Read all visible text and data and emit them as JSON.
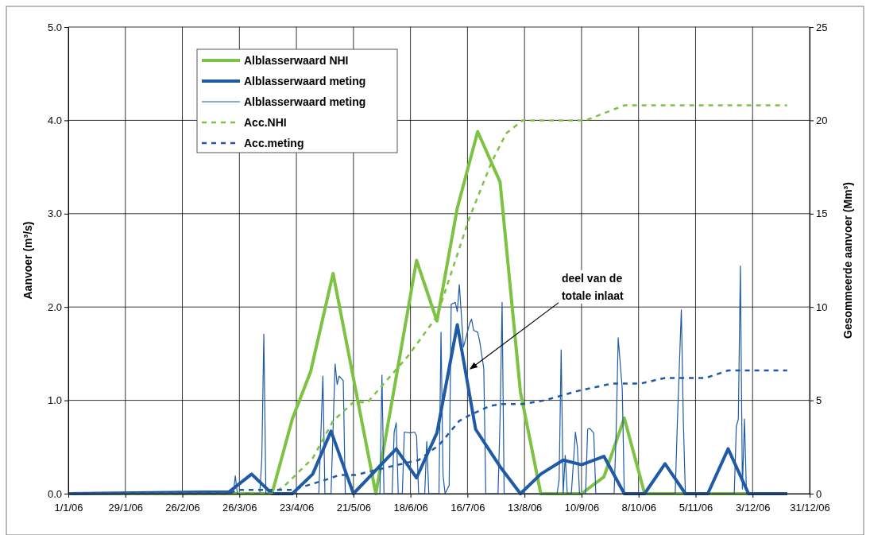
{
  "chart_data": {
    "type": "line",
    "ylabel": "Aanvoer (m³/s)",
    "y2label": "Gesommeerde aanvoer (Mm³)",
    "xlim": [
      "2006-01-01",
      "2006-12-31"
    ],
    "xticks": [
      {
        "value": "2006-01-01",
        "label": "1/1/06"
      },
      {
        "value": "2006-01-29",
        "label": "29/1/06"
      },
      {
        "value": "2006-02-26",
        "label": "26/2/06"
      },
      {
        "value": "2006-03-26",
        "label": "26/3/06"
      },
      {
        "value": "2006-04-23",
        "label": "23/4/06"
      },
      {
        "value": "2006-05-21",
        "label": "21/5/06"
      },
      {
        "value": "2006-06-18",
        "label": "18/6/06"
      },
      {
        "value": "2006-07-16",
        "label": "16/7/06"
      },
      {
        "value": "2006-08-13",
        "label": "13/8/06"
      },
      {
        "value": "2006-09-10",
        "label": "10/9/06"
      },
      {
        "value": "2006-10-08",
        "label": "8/10/06"
      },
      {
        "value": "2006-11-05",
        "label": "5/11/06"
      },
      {
        "value": "2006-12-03",
        "label": "3/12/06"
      },
      {
        "value": "2006-12-31",
        "label": "31/12/06"
      }
    ],
    "ylim": [
      0,
      5
    ],
    "yticks": [
      {
        "value": 0,
        "label": "0.0"
      },
      {
        "value": 1,
        "label": "1.0"
      },
      {
        "value": 2,
        "label": "2.0"
      },
      {
        "value": 3,
        "label": "3.0"
      },
      {
        "value": 4,
        "label": "4.0"
      },
      {
        "value": 5,
        "label": "5.0"
      }
    ],
    "y2lim": [
      0,
      25
    ],
    "y2ticks": [
      0,
      5,
      10,
      15,
      20,
      25
    ],
    "grid": true,
    "legend": "top left",
    "series": [
      {
        "name": "Alblasserwaard NHI",
        "color": "#7dc242",
        "line_style": "solid",
        "x": [
          "2006-01-01",
          "2006-04-11",
          "2006-04-21",
          "2006-04-30",
          "2006-05-11",
          "2006-06-01",
          "2006-06-21",
          "2006-07-01",
          "2006-07-11",
          "2006-07-21",
          "2006-08-01",
          "2006-08-11",
          "2006-08-21",
          "2006-09-10",
          "2006-09-21",
          "2006-10-01",
          "2006-10-11",
          "2006-12-20"
        ],
        "values": [
          0,
          0,
          0.8,
          1.31,
          2.36,
          0,
          2.5,
          1.85,
          3.06,
          3.88,
          3.34,
          1.09,
          0,
          0,
          0.18,
          0.81,
          0,
          0
        ]
      },
      {
        "name": "Alblasserwaard meting",
        "color": "#1f5aa6",
        "line_style": "solid",
        "x": [
          "2006-01-01",
          "2006-03-21",
          "2006-04-01",
          "2006-04-11",
          "2006-04-21",
          "2006-05-01",
          "2006-05-10",
          "2006-05-21",
          "2006-06-11",
          "2006-06-21",
          "2006-07-01",
          "2006-07-11",
          "2006-07-20",
          "2006-08-01",
          "2006-08-11",
          "2006-08-21",
          "2006-09-01",
          "2006-09-10",
          "2006-09-21",
          "2006-10-01",
          "2006-10-11",
          "2006-10-21",
          "2006-10-31",
          "2006-11-11",
          "2006-11-21",
          "2006-12-01",
          "2006-12-20"
        ],
        "values": [
          0,
          0.02,
          0.21,
          0,
          0,
          0.21,
          0.67,
          0,
          0.48,
          0.17,
          0.65,
          1.81,
          0.69,
          0.29,
          0,
          0.21,
          0.36,
          0.31,
          0.4,
          0,
          0,
          0.32,
          0,
          0,
          0.48,
          0,
          0
        ]
      },
      {
        "name": "Alblasserwaard meting",
        "color": "#1f5aa6",
        "line_style": "solid",
        "x": [
          "2006-01-01",
          "2006-03-23",
          "2006-03-24",
          "2006-03-25",
          "2006-04-05",
          "2006-04-06",
          "2006-04-07",
          "2006-04-08",
          "2006-05-04",
          "2006-05-06",
          "2006-05-07",
          "2006-05-10",
          "2006-05-12",
          "2006-05-13",
          "2006-05-14",
          "2006-05-16",
          "2006-05-17",
          "2006-06-03",
          "2006-06-04",
          "2006-06-05",
          "2006-06-09",
          "2006-06-10",
          "2006-06-11",
          "2006-06-12",
          "2006-06-14",
          "2006-06-15",
          "2006-06-18",
          "2006-06-20",
          "2006-06-21",
          "2006-06-22",
          "2006-06-25",
          "2006-06-26",
          "2006-06-27",
          "2006-07-02",
          "2006-07-03",
          "2006-07-04",
          "2006-07-05",
          "2006-07-07",
          "2006-07-08",
          "2006-07-10",
          "2006-07-11",
          "2006-07-12",
          "2006-07-13",
          "2006-07-14",
          "2006-07-15",
          "2006-07-17",
          "2006-07-18",
          "2006-07-19",
          "2006-07-21",
          "2006-07-22",
          "2006-07-24",
          "2006-07-25",
          "2006-07-31",
          "2006-08-01",
          "2006-08-02",
          "2006-08-03",
          "2006-08-29",
          "2006-08-30",
          "2006-08-31",
          "2006-09-01",
          "2006-09-02",
          "2006-09-03",
          "2006-09-05",
          "2006-09-07",
          "2006-09-08",
          "2006-09-09",
          "2006-09-12",
          "2006-09-13",
          "2006-09-14",
          "2006-09-16",
          "2006-09-17",
          "2006-09-26",
          "2006-09-27",
          "2006-09-28",
          "2006-09-30",
          "2006-10-01",
          "2006-10-26",
          "2006-10-27",
          "2006-10-29",
          "2006-10-30",
          "2006-10-31",
          "2006-11-24",
          "2006-11-25",
          "2006-11-26",
          "2006-11-27",
          "2006-11-28",
          "2006-11-29",
          "2006-11-30",
          "2006-12-20"
        ],
        "values": [
          0,
          0,
          0.19,
          0,
          0,
          0.37,
          1.71,
          0,
          0,
          1.26,
          0,
          0,
          1.39,
          1.17,
          1.26,
          1.21,
          0,
          0,
          1.27,
          0,
          0,
          0.66,
          0.76,
          0,
          0,
          0.66,
          0.65,
          0.66,
          0.62,
          0,
          0,
          0.56,
          0,
          0,
          1.73,
          0.2,
          0,
          0.09,
          2.03,
          2.05,
          1.95,
          2.24,
          1.91,
          1.57,
          1.65,
          1.82,
          1.87,
          1.75,
          1.73,
          1.63,
          1.34,
          0,
          0,
          0.8,
          2.05,
          0,
          0,
          0.15,
          1.54,
          0,
          0.41,
          0,
          0,
          0.66,
          0.49,
          0,
          0,
          0.69,
          0.7,
          0.65,
          0,
          0,
          0.66,
          1.67,
          1.12,
          0,
          0,
          0.72,
          1.97,
          0.77,
          0,
          0,
          0.72,
          0.8,
          2.44,
          0.05,
          0.8,
          0,
          0
        ]
      },
      {
        "name": "Acc.NHI",
        "color": "#7dc242",
        "line_style": "dashed",
        "axis": "y2",
        "x": [
          "2006-01-01",
          "2006-04-11",
          "2006-04-17",
          "2006-05-01",
          "2006-05-11",
          "2006-05-21",
          "2006-05-28",
          "2006-06-17",
          "2006-07-01",
          "2006-07-17",
          "2006-07-28",
          "2006-08-04",
          "2006-08-12",
          "2006-09-12",
          "2006-10-01",
          "2006-12-20"
        ],
        "values": [
          0,
          0,
          0.4,
          1.9,
          3.9,
          4.9,
          4.9,
          7.4,
          9.5,
          14.8,
          17.8,
          19.3,
          20,
          20,
          20.8,
          20.8
        ]
      },
      {
        "name": "Acc.meting",
        "color": "#1f5aa6",
        "line_style": "dashed",
        "axis": "y2",
        "x": [
          "2006-01-01",
          "2006-03-21",
          "2006-03-25",
          "2006-04-21",
          "2006-05-09",
          "2006-05-14",
          "2006-05-22",
          "2006-06-10",
          "2006-06-22",
          "2006-07-02",
          "2006-07-12",
          "2006-07-17",
          "2006-07-27",
          "2006-08-02",
          "2006-08-12",
          "2006-08-23",
          "2006-09-08",
          "2006-09-25",
          "2006-10-09",
          "2006-10-21",
          "2006-11-10",
          "2006-11-21",
          "2006-12-20"
        ],
        "values": [
          0,
          0,
          0.2,
          0.2,
          0.8,
          1,
          1,
          1.5,
          1.8,
          2.6,
          3.9,
          4.2,
          4.7,
          4.8,
          4.8,
          5,
          5.5,
          5.9,
          5.9,
          6.2,
          6.2,
          6.6,
          6.6
        ]
      }
    ],
    "annotations": [
      {
        "text": "deel van de totale inlaat",
        "x": "2006-07-17",
        "y": 1.33
      }
    ]
  }
}
